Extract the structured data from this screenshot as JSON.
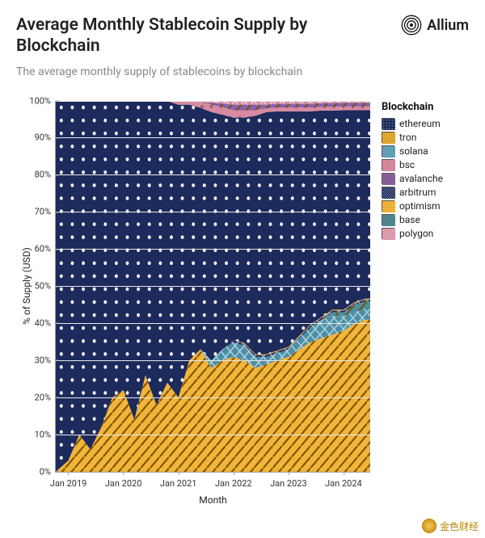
{
  "header": {
    "title": "Average Monthly Stablecoin Supply by Blockchain",
    "subtitle": "The average monthly supply of stablecoins by blockchain",
    "brand": "Allium"
  },
  "chart": {
    "type": "stacked-area-100pct",
    "xlabel": "Month",
    "ylabel": "% of Supply (USD)",
    "background_color": "#ffffff",
    "grid_color": "#e8e8e8",
    "y_ticks": [
      "0%",
      "10%",
      "20%",
      "30%",
      "40%",
      "50%",
      "60%",
      "70%",
      "80%",
      "90%",
      "100%"
    ],
    "x_ticks": [
      "Jan 2019",
      "Jan 2020",
      "Jan 2021",
      "Jan 2022",
      "Jan 2023",
      "Jan 2024"
    ],
    "x_tick_positions": [
      0.04,
      0.215,
      0.39,
      0.565,
      0.74,
      0.915
    ],
    "legend_title": "Blockchain",
    "series": [
      {
        "key": "ethereum",
        "label": "ethereum",
        "color": "#1c2a5c",
        "pattern": "dots-white"
      },
      {
        "key": "tron",
        "label": "tron",
        "color": "#f2b53a",
        "pattern": "diag"
      },
      {
        "key": "solana",
        "label": "solana",
        "color": "#4a8fa8",
        "pattern": "cross"
      },
      {
        "key": "bsc",
        "label": "bsc",
        "color": "#d88aa0",
        "pattern": "dots-dark"
      },
      {
        "key": "avalanche",
        "label": "avalanche",
        "color": "#8860b3",
        "pattern": "diag"
      },
      {
        "key": "arbitrum",
        "label": "arbitrum",
        "color": "#1c2a5c",
        "pattern": "cross"
      },
      {
        "key": "optimism",
        "label": "optimism",
        "color": "#f2b53a",
        "pattern": "dots-dark"
      },
      {
        "key": "base",
        "label": "base",
        "color": "#4a8fa8",
        "pattern": "diag"
      },
      {
        "key": "polygon",
        "label": "polygon",
        "color": "#d88aa0",
        "pattern": "cross"
      }
    ],
    "time_positions": [
      0.0,
      0.04,
      0.075,
      0.11,
      0.145,
      0.18,
      0.215,
      0.25,
      0.285,
      0.32,
      0.355,
      0.39,
      0.425,
      0.46,
      0.495,
      0.53,
      0.565,
      0.6,
      0.635,
      0.67,
      0.705,
      0.74,
      0.775,
      0.81,
      0.845,
      0.88,
      0.915,
      0.95,
      0.985,
      1.0
    ],
    "stack_data": {
      "tron": [
        0,
        3,
        10,
        6,
        12,
        20,
        22,
        14,
        26,
        18,
        24,
        20,
        30,
        33,
        28,
        30,
        31,
        30,
        28,
        29,
        30,
        31,
        33,
        35,
        36,
        37,
        38,
        40,
        41,
        41
      ],
      "solana": [
        0,
        0,
        0,
        0,
        0,
        0,
        0,
        0,
        0,
        0,
        0,
        0,
        0,
        0,
        2,
        3,
        4,
        4,
        3,
        2,
        2,
        2,
        3,
        4,
        5,
        5,
        4,
        3,
        3,
        3
      ],
      "base": [
        0,
        0,
        0,
        0,
        0,
        0,
        0,
        0,
        0,
        0,
        0,
        0,
        0,
        0,
        0,
        0,
        0,
        0,
        0,
        0,
        0,
        0,
        0,
        0,
        0,
        1,
        1,
        2,
        2,
        2
      ],
      "arbitrum": [
        0,
        0,
        0,
        0,
        0,
        0,
        0,
        0,
        0,
        0,
        0,
        0,
        0,
        0,
        0,
        0,
        0.5,
        0.5,
        0.5,
        0.5,
        0.5,
        0.5,
        0.5,
        0.5,
        0.5,
        0.5,
        0.5,
        0.5,
        0.5,
        0.5
      ],
      "optimism": [
        0,
        0,
        0,
        0,
        0,
        0,
        0,
        0,
        0,
        0,
        0,
        0,
        0,
        0,
        0,
        0,
        0,
        0.2,
        0.2,
        0.2,
        0.2,
        0.2,
        0.2,
        0.2,
        0.2,
        0.2,
        0.2,
        0.2,
        0.2,
        0.2
      ],
      "bsc": [
        0,
        0,
        0,
        0,
        0,
        0,
        0,
        0,
        0,
        0,
        0,
        1,
        1,
        1.5,
        2,
        2,
        2,
        2,
        1.5,
        1,
        1,
        1,
        1,
        1,
        1,
        1,
        1,
        1,
        1,
        1
      ],
      "avalanche": [
        0,
        0,
        0,
        0,
        0,
        0,
        0,
        0,
        0,
        0,
        0,
        0,
        0,
        0,
        0.5,
        1,
        1.5,
        1.5,
        1.5,
        1,
        1,
        1,
        1,
        1,
        1,
        1,
        1,
        1,
        1,
        1
      ],
      "polygon": [
        0,
        0,
        0,
        0,
        0,
        0,
        0,
        0,
        0,
        0,
        0,
        0,
        0,
        0.3,
        0.5,
        0.7,
        1,
        1,
        1,
        1,
        0.8,
        0.8,
        0.8,
        0.8,
        0.6,
        0.6,
        0.5,
        0.5,
        0.5,
        0.5
      ]
    },
    "bottom_order": [
      "tron",
      "solana",
      "base",
      "arbitrum",
      "optimism"
    ],
    "top_order": [
      "polygon",
      "avalanche",
      "bsc"
    ]
  },
  "watermark": {
    "text": "金色财经"
  }
}
